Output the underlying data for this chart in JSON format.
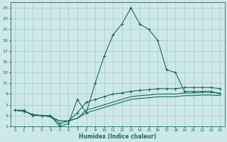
{
  "xlabel": "Humidex (Indice chaleur)",
  "bg_color": "#cce8e8",
  "grid_color": "#aacccc",
  "line_color": "#1a6b5a",
  "xlim": [
    -0.5,
    23.5
  ],
  "ylim": [
    3,
    26
  ],
  "xticks": [
    0,
    1,
    2,
    3,
    4,
    5,
    6,
    7,
    8,
    9,
    10,
    11,
    12,
    13,
    14,
    15,
    16,
    17,
    18,
    19,
    20,
    21,
    22,
    23
  ],
  "yticks": [
    3,
    5,
    7,
    9,
    11,
    13,
    15,
    17,
    19,
    21,
    23,
    25
  ],
  "line1_x": [
    0,
    1,
    2,
    3,
    4,
    5,
    6,
    7,
    8,
    9,
    10,
    11,
    12,
    13,
    14,
    15,
    16,
    17,
    18,
    19,
    20,
    21,
    22,
    23
  ],
  "line1_y": [
    6,
    6,
    5,
    5,
    5,
    3,
    3.5,
    8,
    5.5,
    11,
    16,
    20,
    22,
    25,
    22,
    21,
    19,
    13.5,
    13,
    9.5,
    9.5,
    9.5,
    9.5,
    9
  ],
  "line1_markers": [
    0,
    1,
    2,
    3,
    4,
    5,
    6,
    7,
    8,
    9,
    10,
    11,
    12,
    13,
    14,
    15,
    16,
    17,
    18,
    19,
    20,
    21,
    22,
    23
  ],
  "line2_x": [
    0,
    1,
    2,
    3,
    4,
    5,
    6,
    7,
    8,
    9,
    10,
    11,
    12,
    13,
    14,
    15,
    16,
    17,
    18,
    19,
    20,
    21,
    22,
    23
  ],
  "line2_y": [
    6,
    5.8,
    5.2,
    5,
    4.8,
    3.5,
    4,
    5.5,
    7.5,
    8,
    8.5,
    9,
    9.2,
    9.5,
    9.7,
    9.8,
    10,
    10,
    10,
    10.2,
    10.2,
    10.2,
    10.2,
    10
  ],
  "line2_markers": [
    0,
    1,
    2,
    3,
    4,
    5,
    6,
    7,
    8,
    9,
    10,
    11,
    12,
    13,
    14,
    15,
    16,
    17,
    18,
    19,
    20,
    21,
    22,
    23
  ],
  "line3_x": [
    0,
    1,
    2,
    3,
    4,
    5,
    6,
    7,
    8,
    9,
    10,
    11,
    12,
    13,
    14,
    15,
    16,
    17,
    18,
    19,
    20,
    21,
    22,
    23
  ],
  "line3_y": [
    6,
    5.8,
    5.2,
    5,
    4.8,
    4,
    4,
    4.5,
    6,
    6.5,
    7,
    7.5,
    8,
    8.5,
    8.7,
    8.8,
    9,
    9,
    9,
    9.2,
    9.2,
    9.3,
    9.3,
    9.2
  ],
  "line4_x": [
    0,
    1,
    2,
    3,
    4,
    5,
    6,
    7,
    8,
    9,
    10,
    11,
    12,
    13,
    14,
    15,
    16,
    17,
    18,
    19,
    20,
    21,
    22,
    23
  ],
  "line4_y": [
    6,
    5.8,
    5.2,
    5,
    4.8,
    4,
    4,
    4.5,
    5.5,
    6,
    6.5,
    7,
    7.5,
    8,
    8.2,
    8.3,
    8.5,
    8.5,
    8.5,
    8.7,
    8.7,
    8.8,
    8.8,
    8.7
  ]
}
